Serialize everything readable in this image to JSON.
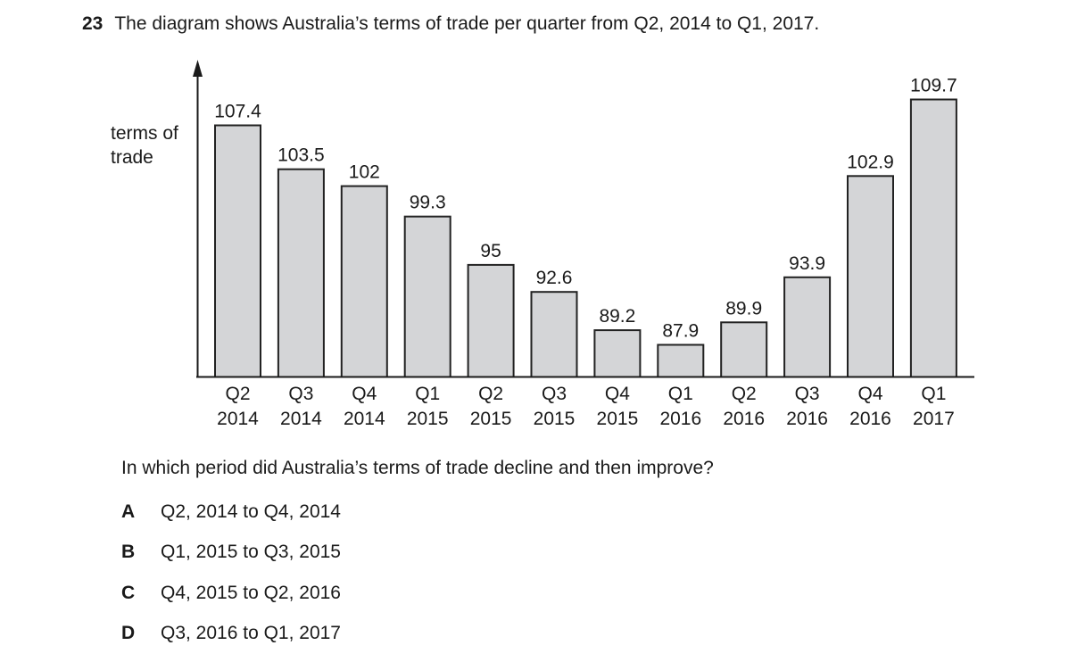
{
  "question": {
    "number": "23",
    "stem": "The diagram shows Australia’s terms of trade per quarter from Q2, 2014 to Q1, 2017.",
    "prompt": "In which period did Australia’s terms of trade decline and then improve?",
    "options": [
      {
        "letter": "A",
        "text": "Q2, 2014 to Q4, 2014"
      },
      {
        "letter": "B",
        "text": "Q1, 2015 to Q3, 2015"
      },
      {
        "letter": "C",
        "text": "Q4, 2015 to Q2, 2016"
      },
      {
        "letter": "D",
        "text": "Q3, 2016 to Q1, 2017"
      }
    ]
  },
  "chart_data": {
    "type": "bar",
    "title": "",
    "xlabel": "",
    "ylabel": "terms of trade",
    "ylabel_lines": [
      "terms of",
      "trade"
    ],
    "categories": [
      [
        "Q2",
        "2014"
      ],
      [
        "Q3",
        "2014"
      ],
      [
        "Q4",
        "2014"
      ],
      [
        "Q1",
        "2015"
      ],
      [
        "Q2",
        "2015"
      ],
      [
        "Q3",
        "2015"
      ],
      [
        "Q4",
        "2015"
      ],
      [
        "Q1",
        "2016"
      ],
      [
        "Q2",
        "2016"
      ],
      [
        "Q3",
        "2016"
      ],
      [
        "Q4",
        "2016"
      ],
      [
        "Q1",
        "2017"
      ]
    ],
    "values": [
      107.4,
      103.5,
      102,
      99.3,
      95,
      92.6,
      89.2,
      87.9,
      89.9,
      93.9,
      102.9,
      109.7
    ],
    "value_labels": [
      "107.4",
      "103.5",
      "102",
      "99.3",
      "95",
      "92.6",
      "89.2",
      "87.9",
      "89.9",
      "93.9",
      "102.9",
      "109.7"
    ],
    "bar_color": "#d4d5d7",
    "bar_stroke": "#222222",
    "grid": false,
    "legend": "none"
  }
}
